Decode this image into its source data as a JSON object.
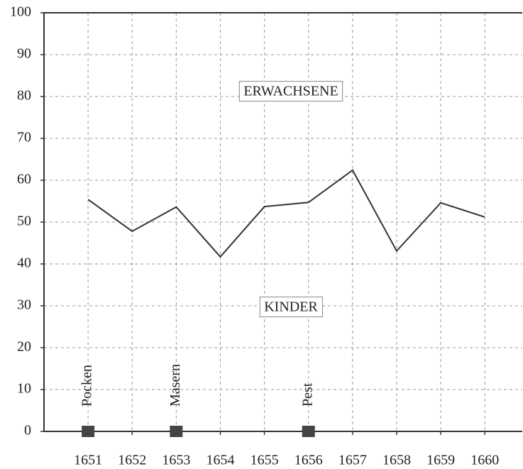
{
  "chart_data": {
    "type": "line",
    "x": [
      1651,
      1652,
      1653,
      1654,
      1655,
      1656,
      1657,
      1658,
      1659,
      1660
    ],
    "values": [
      55.4,
      47.8,
      53.6,
      41.7,
      53.7,
      54.7,
      62.4,
      43.1,
      54.6,
      51.2
    ],
    "color": "#333333",
    "xlim": [
      1650,
      1660.85
    ],
    "xticks": [
      1651,
      1652,
      1653,
      1654,
      1655,
      1656,
      1657,
      1658,
      1659,
      1660
    ],
    "ylim": [
      0,
      100
    ],
    "yticks": [
      0,
      10,
      20,
      30,
      40,
      50,
      60,
      70,
      80,
      90,
      100
    ],
    "grid": true,
    "annotations": [
      "ERWACHSENE",
      "KINDER"
    ],
    "events": [
      {
        "x": 1651,
        "y": 0,
        "label": "Pocken"
      },
      {
        "x": 1653,
        "y": 0,
        "label": "Masern"
      },
      {
        "x": 1656,
        "y": 0,
        "label": "Pest"
      }
    ],
    "event_color": "#444444"
  }
}
